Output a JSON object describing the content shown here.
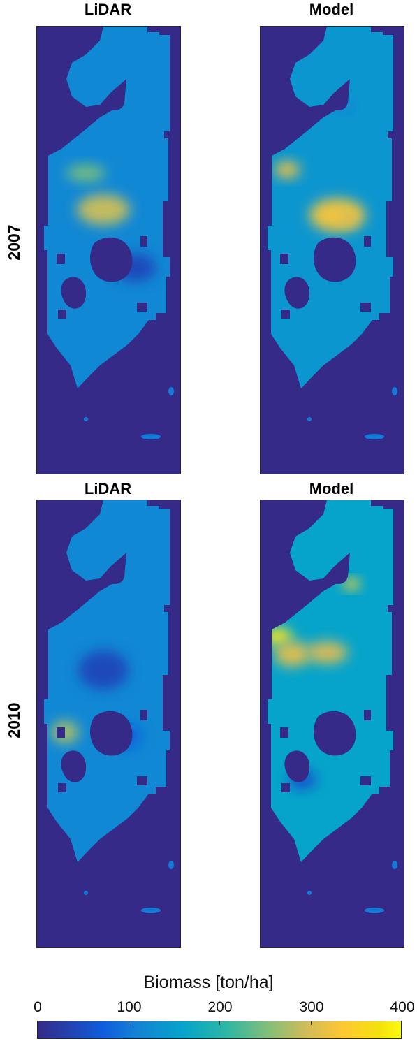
{
  "chart_data": {
    "type": "heatmap",
    "colorbar": {
      "label": "Biomass [ton/ha]",
      "min": 0,
      "max": 400,
      "ticks": [
        "0",
        "100",
        "200",
        "300",
        "400"
      ],
      "colormap": "parula",
      "colors": [
        "#352a87",
        "#0f5cdd",
        "#1481d6",
        "#06a4ca",
        "#2eb7a4",
        "#87bf77",
        "#d1bb59",
        "#fec832",
        "#f9fb0e"
      ]
    },
    "rows": [
      {
        "label": "2007",
        "panels": [
          {
            "title": "LiDAR",
            "hotspots": [
              {
                "value": 290
              },
              {
                "value": 240
              },
              {
                "value": 30
              }
            ]
          },
          {
            "title": "Model",
            "hotspots": [
              {
                "value": 320
              },
              {
                "value": 330
              },
              {
                "value": 300
              },
              {
                "value": 100
              }
            ]
          }
        ]
      },
      {
        "label": "2010",
        "panels": [
          {
            "title": "LiDAR",
            "hotspots": [
              {
                "value": 30
              },
              {
                "value": 270
              },
              {
                "value": 60
              }
            ]
          },
          {
            "title": "Model",
            "hotspots": [
              {
                "value": 380
              },
              {
                "value": 360
              },
              {
                "value": 310
              },
              {
                "value": 300
              },
              {
                "value": 40
              }
            ]
          }
        ]
      }
    ]
  }
}
